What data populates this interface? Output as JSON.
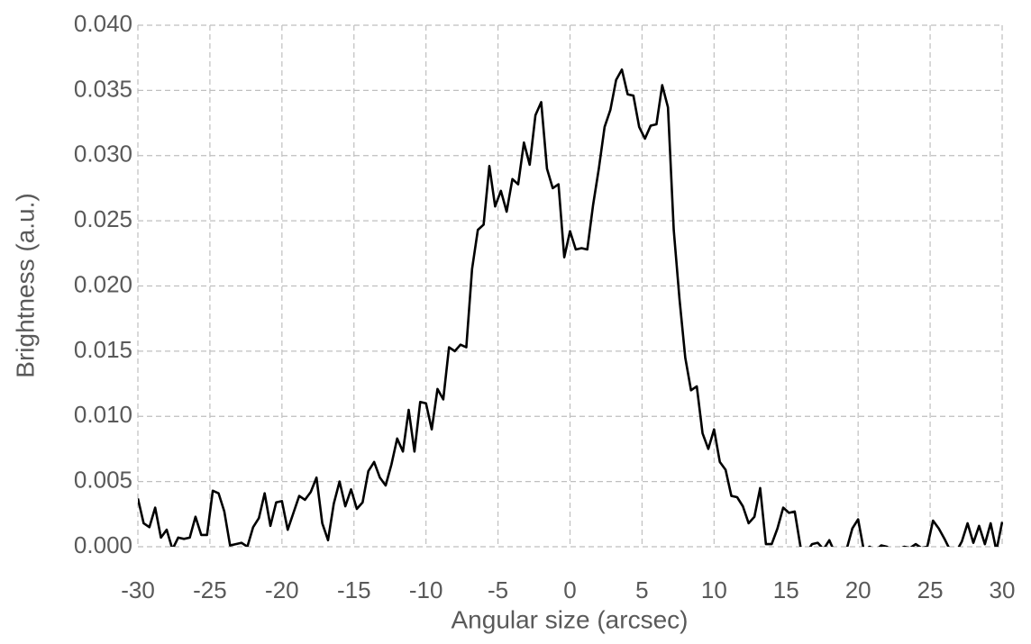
{
  "chart_data": {
    "type": "line",
    "xlabel": "Angular size (arcsec)",
    "ylabel": "Brightness (a.u.)",
    "color": "#000000",
    "grid": true,
    "xlim": [
      -30,
      30
    ],
    "xticks": [
      -30,
      -25,
      -20,
      -15,
      -10,
      -5,
      0,
      5,
      10,
      15,
      20,
      25,
      30
    ],
    "ylim": [
      0,
      0.04
    ],
    "yticks": [
      {
        "value": 0,
        "label": "0.000"
      },
      {
        "value": 0.005,
        "label": "0.005"
      },
      {
        "value": 0.01,
        "label": "0.010"
      },
      {
        "value": 0.015,
        "label": "0.015"
      },
      {
        "value": 0.02,
        "label": "0.020"
      },
      {
        "value": 0.025,
        "label": "0.025"
      },
      {
        "value": 0.03,
        "label": "0.030"
      },
      {
        "value": 0.035,
        "label": "0.035"
      },
      {
        "value": 0.04,
        "label": "0.040"
      }
    ],
    "x": [
      -30,
      -29.6,
      -29.2,
      -28.8,
      -28.4,
      -28,
      -27.6,
      -27.2,
      -26.8,
      -26.4,
      -26,
      -25.6,
      -25.2,
      -24.8,
      -24.4,
      -24,
      -23.6,
      -23.2,
      -22.8,
      -22.4,
      -22,
      -21.6,
      -21.2,
      -20.8,
      -20.4,
      -20,
      -19.6,
      -19.2,
      -18.8,
      -18.4,
      -18,
      -17.6,
      -17.2,
      -16.8,
      -16.4,
      -16,
      -15.6,
      -15.2,
      -14.8,
      -14.4,
      -14,
      -13.6,
      -13.2,
      -12.8,
      -12.4,
      -12,
      -11.6,
      -11.2,
      -10.8,
      -10.4,
      -10,
      -9.6,
      -9.2,
      -8.8,
      -8.4,
      -8,
      -7.6,
      -7.2,
      -6.8,
      -6.4,
      -6,
      -5.6,
      -5.2,
      -4.8,
      -4.4,
      -4,
      -3.6,
      -3.2,
      -2.8,
      -2.4,
      -2,
      -1.6,
      -1.2,
      -0.8,
      -0.4,
      0,
      0.4,
      0.8,
      1.2,
      1.6,
      2,
      2.4,
      2.8,
      3.2,
      3.6,
      4,
      4.4,
      4.8,
      5.2,
      5.6,
      6,
      6.4,
      6.8,
      7.2,
      7.6,
      8,
      8.4,
      8.8,
      9.2,
      9.6,
      10,
      10.4,
      10.8,
      11.2,
      11.6,
      12,
      12.4,
      12.8,
      13.2,
      13.6,
      14,
      14.4,
      14.8,
      15.2,
      15.6,
      16,
      16.4,
      16.8,
      17.2,
      17.6,
      18,
      18.4,
      18.8,
      19.2,
      19.6,
      20,
      20.4,
      20.8,
      21.2,
      21.6,
      22,
      22.4,
      22.8,
      23.2,
      23.6,
      24,
      24.4,
      24.8,
      25.2,
      25.6,
      26,
      26.4,
      26.8,
      27.2,
      27.6,
      28,
      28.4,
      28.8,
      29.2,
      29.6,
      30
    ],
    "values": [
      0.0037,
      0.0018,
      0.0015,
      0.003,
      0.0007,
      0.0013,
      -0.0002,
      0.0007,
      0.0006,
      0.0007,
      0.0023,
      0.0009,
      0.0009,
      0.0043,
      0.0041,
      0.0027,
      0.0001,
      0.0002,
      0.0003,
      0,
      0.0015,
      0.0022,
      0.0041,
      0.0016,
      0.0034,
      0.0035,
      0.0013,
      0.0026,
      0.0039,
      0.0036,
      0.0042,
      0.0053,
      0.0018,
      0.0005,
      0.0033,
      0.005,
      0.0031,
      0.0044,
      0.0029,
      0.0034,
      0.0058,
      0.0065,
      0.0053,
      0.0047,
      0.0063,
      0.0083,
      0.0073,
      0.0105,
      0.0073,
      0.0111,
      0.011,
      0.009,
      0.0121,
      0.0113,
      0.0153,
      0.015,
      0.0155,
      0.0153,
      0.0213,
      0.0243,
      0.0247,
      0.0292,
      0.0261,
      0.0273,
      0.0257,
      0.0282,
      0.0278,
      0.031,
      0.0293,
      0.0331,
      0.0341,
      0.029,
      0.0275,
      0.0278,
      0.0222,
      0.0242,
      0.0228,
      0.0229,
      0.0228,
      0.0262,
      0.029,
      0.0322,
      0.0335,
      0.0358,
      0.0366,
      0.0347,
      0.0346,
      0.0322,
      0.0313,
      0.0323,
      0.0324,
      0.0354,
      0.0337,
      0.0243,
      0.019,
      0.0145,
      0.012,
      0.0123,
      0.0087,
      0.0075,
      0.009,
      0.0065,
      0.0059,
      0.0039,
      0.0038,
      0.0031,
      0.0018,
      0.0023,
      0.0045,
      0.0002,
      0.0002,
      0.0014,
      0.003,
      0.0026,
      0.0027,
      0,
      -0.0005,
      0.0002,
      0.0003,
      -0.0002,
      0.0005,
      -0.0005,
      -0.0003,
      -0.0002,
      0.0014,
      0.0021,
      -0.0003,
      0,
      -0.0003,
      0.0001,
      0,
      -0.0004,
      -0.0002,
      0,
      -0.0001,
      0.0002,
      -0.0001,
      0,
      0.002,
      0.0014,
      0.0006,
      -0.0003,
      -0.0004,
      0.0004,
      0.0018,
      0.0003,
      0.0016,
      0.0002,
      0.0018,
      -0.0003,
      0.0019
    ]
  }
}
